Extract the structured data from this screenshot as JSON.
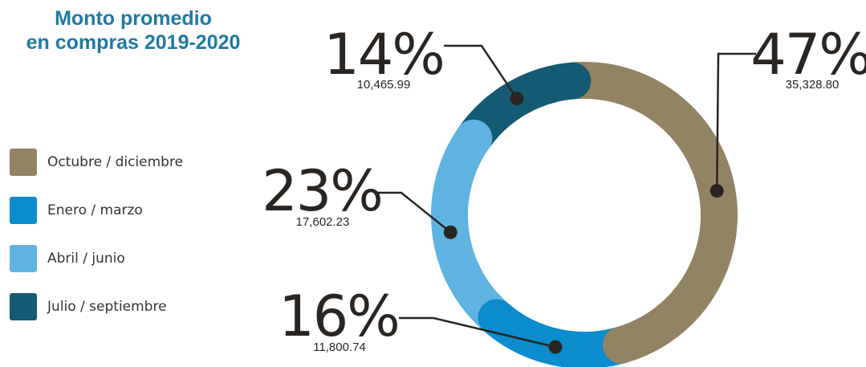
{
  "title": {
    "line1": "Monto promedio",
    "line2": "en compras 2019-2020"
  },
  "chart_data": {
    "type": "pie",
    "variant": "donut",
    "categories": [
      "Octubre / diciembre",
      "Enero / marzo",
      "Abril / junio",
      "Julio / septiembre"
    ],
    "values": [
      35328.8,
      11800.74,
      17602.23,
      10465.99
    ],
    "percent_labels": [
      "47%",
      "16%",
      "23%",
      "14%"
    ],
    "value_labels": [
      "35,328.80",
      "11,800.74",
      "17,602.23",
      "10,465.99"
    ],
    "colors": [
      "#928363",
      "#0a8ccd",
      "#5fb3e0",
      "#135a72"
    ],
    "legend_position": "left"
  }
}
